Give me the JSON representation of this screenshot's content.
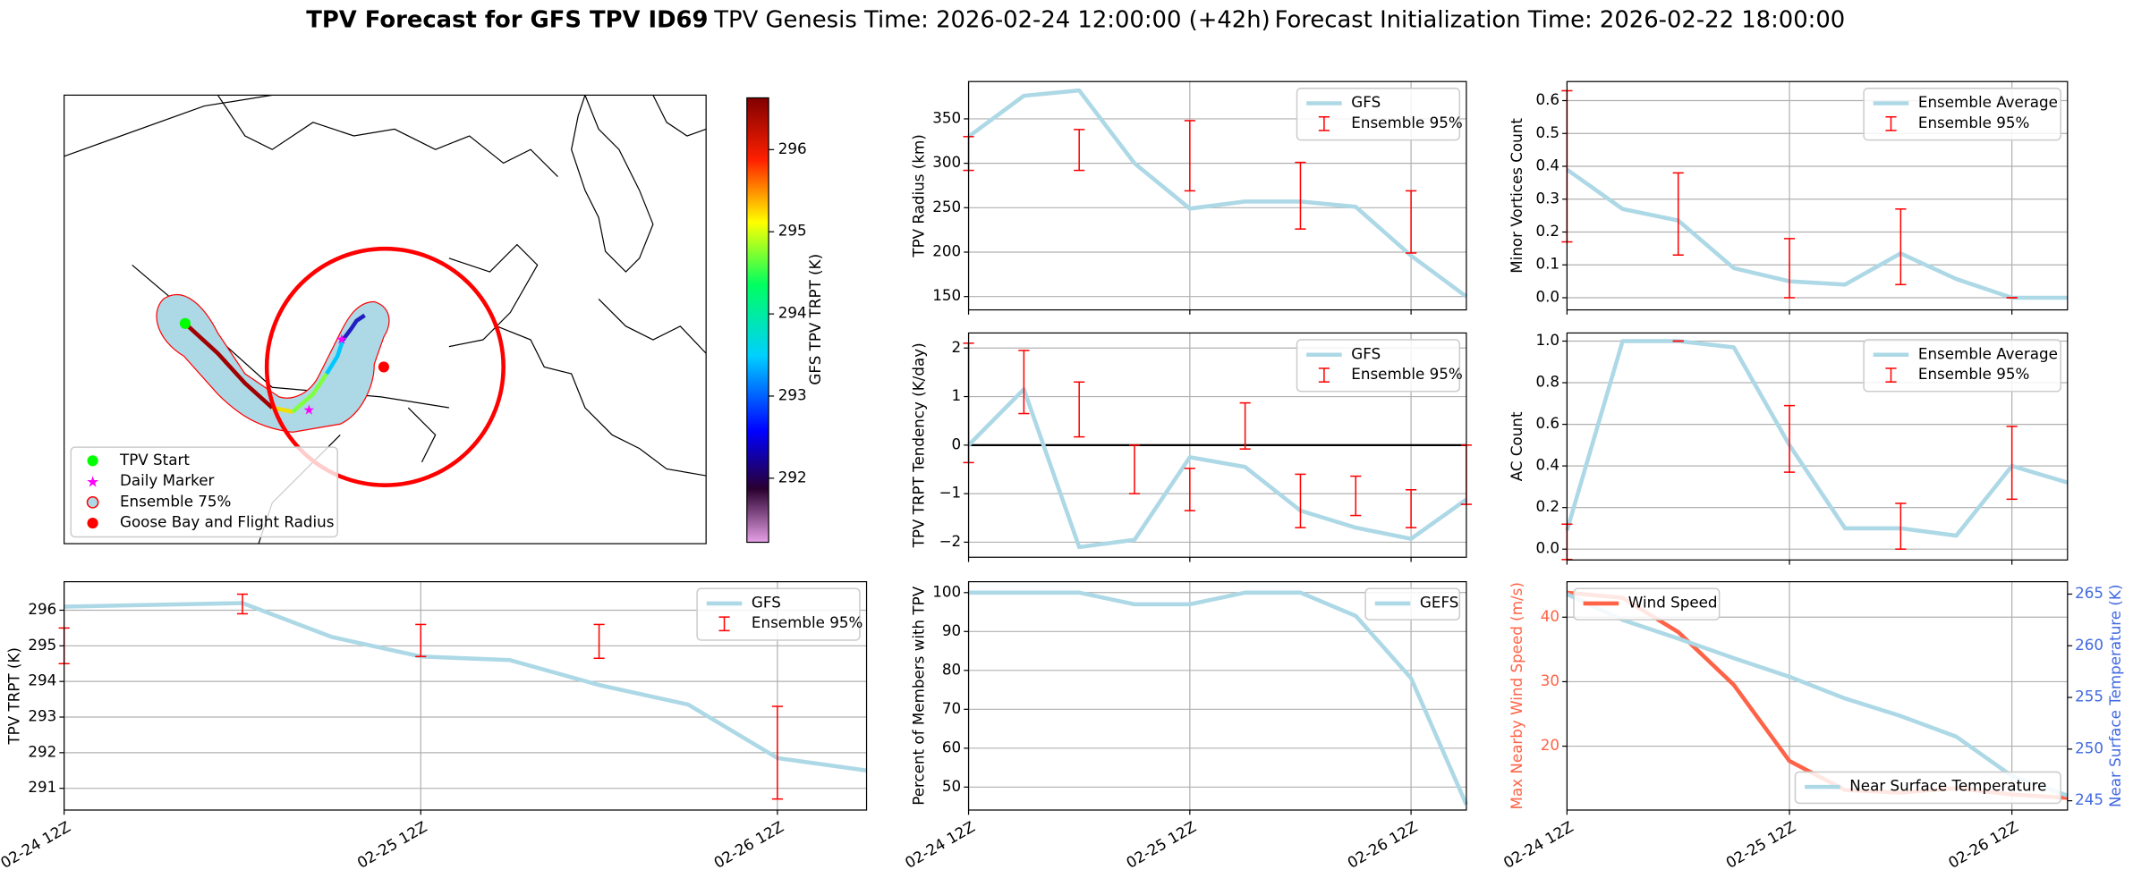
{
  "figure": {
    "title": "TPV Forecast for GFS TPV ID69",
    "genesis": "TPV Genesis Time: 2026-02-24 12:00:00 (+42h)",
    "init": "Forecast Initialization Time: 2026-02-22 18:00:00"
  },
  "chart_data": [
    {
      "type": "map",
      "legend": [
        {
          "name": "TPV Start",
          "color": "#00ff00",
          "marker": "circle"
        },
        {
          "name": "Daily Marker",
          "color": "#ff00ff",
          "marker": "star"
        },
        {
          "name": "Ensemble 75%",
          "color": "#add8e6",
          "marker": "ring"
        },
        {
          "name": "Goose Bay and Flight Radius",
          "color": "#ff0000",
          "marker": "circle"
        }
      ],
      "colorbar": {
        "label": "GFS TPV TRPT (K)",
        "lim": [
          291.22,
          296.63
        ],
        "ticks": [
          292,
          293,
          294,
          295,
          296
        ]
      }
    },
    {
      "type": "line",
      "ylabel": "TPV Radius (km)",
      "ylim": [
        135,
        392
      ],
      "yticks": [
        150,
        200,
        250,
        300,
        350
      ],
      "grid": true,
      "legend": "upper right",
      "series": [
        {
          "name": "GFS",
          "color": "#add8e6",
          "values": [
            330,
            376,
            382,
            300,
            249,
            257,
            257,
            251,
            196,
            150
          ]
        }
      ],
      "errorbars": {
        "name": "Ensemble 95%",
        "color": "#ff0000",
        "low": [
          292,
          null,
          292,
          null,
          269,
          null,
          226,
          null,
          199,
          null
        ],
        "high": [
          330,
          null,
          338,
          null,
          348,
          null,
          301,
          null,
          269,
          null
        ]
      }
    },
    {
      "type": "line",
      "ylabel": "TPV TRPT Tendency (K/day)",
      "ylim": [
        -2.31,
        2.31
      ],
      "yticks": [
        2,
        1,
        0,
        {
          "value": -1,
          "label": "−1"
        },
        {
          "value": -2,
          "label": "−2"
        }
      ],
      "grid": true,
      "legend": "upper right",
      "hline": 0,
      "series": [
        {
          "name": "GFS",
          "color": "#add8e6",
          "values": [
            0,
            1.15,
            -2.1,
            -1.95,
            -0.25,
            -0.45,
            -1.35,
            -1.7,
            -1.93,
            -1.12
          ]
        }
      ],
      "errorbars": {
        "name": "Ensemble 95%",
        "color": "#ff0000",
        "low": [
          -0.36,
          0.65,
          0.17,
          -1.0,
          -1.35,
          -0.08,
          -1.7,
          -1.45,
          -1.7,
          -1.22
        ],
        "high": [
          2.1,
          1.95,
          1.3,
          0,
          -0.48,
          0.87,
          -0.6,
          -0.64,
          -0.92,
          0
        ]
      }
    },
    {
      "type": "line",
      "ylabel": "Percent of Members with TPV",
      "ylim": [
        44.1,
        102.8
      ],
      "yticks": [
        50,
        60,
        70,
        80,
        90,
        100
      ],
      "grid": true,
      "legend": "upper right",
      "categories": [
        "02-24 12Z",
        null,
        null,
        null,
        "02-25 12Z",
        null,
        null,
        null,
        "02-26 12Z",
        null
      ],
      "series": [
        {
          "name": "GEFS",
          "color": "#add8e6",
          "values": [
            100,
            100,
            100,
            97,
            97,
            100,
            100,
            94,
            78,
            45.5
          ]
        }
      ]
    },
    {
      "type": "line",
      "ylabel": "Minor Vortices Count",
      "ylim": [
        -0.037,
        0.658
      ],
      "yticks": [
        {
          "value": 0,
          "label": "0.0"
        },
        0.1,
        0.2,
        0.3,
        0.4,
        0.5,
        0.6
      ],
      "grid": true,
      "legend": "upper right",
      "series": [
        {
          "name": "Ensemble Average",
          "color": "#add8e6",
          "values": [
            0.39,
            0.27,
            0.235,
            0.09,
            0.05,
            0.04,
            0.135,
            0.057,
            0,
            0
          ]
        }
      ],
      "errorbars": {
        "name": "Ensemble 95%",
        "color": "#ff0000",
        "low": [
          0.17,
          null,
          0.13,
          null,
          0,
          null,
          0.04,
          null,
          0,
          null
        ],
        "high": [
          0.63,
          null,
          0.38,
          null,
          0.18,
          null,
          0.27,
          null,
          0,
          null
        ]
      }
    },
    {
      "type": "line",
      "ylabel": "AC Count",
      "ylim": [
        -0.052,
        1.039
      ],
      "yticks": [
        {
          "value": 0,
          "label": "0.0"
        },
        0.2,
        0.4,
        0.6,
        0.8,
        {
          "value": 1,
          "label": "1.0"
        }
      ],
      "grid": true,
      "legend": "upper right",
      "series": [
        {
          "name": "Ensemble Average",
          "color": "#add8e6",
          "values": [
            0.09,
            1,
            1,
            0.97,
            0.5,
            0.1,
            0.1,
            0.065,
            0.4,
            0.32
          ]
        }
      ],
      "errorbars": {
        "name": "Ensemble 95%",
        "color": "#ff0000",
        "low": [
          -0.05,
          null,
          1,
          null,
          0.37,
          null,
          0,
          null,
          0.24,
          null
        ],
        "high": [
          0.12,
          null,
          1,
          null,
          0.69,
          null,
          0.22,
          null,
          0.59,
          null
        ]
      }
    },
    {
      "type": "line",
      "ylabel": "TPV TRPT (K)",
      "ylim": [
        290.39,
        296.8
      ],
      "yticks": [
        291,
        292,
        293,
        294,
        295,
        296
      ],
      "grid": true,
      "legend": "upper right",
      "categories": [
        "02-24 12Z",
        null,
        null,
        null,
        "02-25 12Z",
        null,
        null,
        null,
        "02-26 12Z",
        null
      ],
      "series": [
        {
          "name": "GFS",
          "color": "#add8e6",
          "values": [
            296.1,
            296.15,
            296.2,
            295.25,
            294.7,
            294.6,
            293.9,
            293.35,
            291.85,
            291.5
          ]
        }
      ],
      "errorbars": {
        "name": "Ensemble 95%",
        "color": "#ff0000",
        "low": [
          294.5,
          null,
          295.9,
          null,
          294.7,
          null,
          294.65,
          null,
          290.7,
          null
        ],
        "high": [
          295.5,
          null,
          296.45,
          null,
          295.6,
          null,
          295.6,
          null,
          293.3,
          null
        ]
      }
    },
    {
      "type": "line",
      "ylabel": "Max Nearby Wind Speed (m/s)",
      "y2label": "Near Surface Temperature (K)",
      "ycolor": "#ff6347",
      "y2color": "#4169e1",
      "ylim": [
        10.1,
        45.5
      ],
      "yticks": [
        20,
        30,
        40
      ],
      "y2lim": [
        244.1,
        266.2
      ],
      "y2ticks": [
        245,
        250,
        255,
        260,
        265
      ],
      "grid": true,
      "categories": [
        "02-24 12Z",
        null,
        null,
        null,
        "02-25 12Z",
        null,
        null,
        null,
        "02-26 12Z",
        null
      ],
      "series": [
        {
          "name": "Wind Speed",
          "color": "#ff6347",
          "legend": "upper left",
          "values": [
            43.8,
            43,
            37.7,
            29.5,
            17.7,
            13.2,
            12.8,
            13.5,
            12.5,
            12
          ]
        },
        {
          "name": "Near Surface Temperature",
          "color": "#add8e6",
          "axis": "y2",
          "legend": "lower right",
          "values": [
            265,
            262.5,
            260.7,
            258.8,
            257,
            254.9,
            253.2,
            251.2,
            247.4,
            245.5
          ]
        }
      ]
    }
  ]
}
